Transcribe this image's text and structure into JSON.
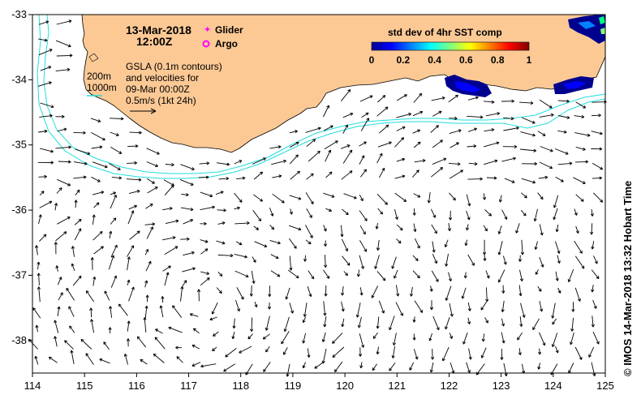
{
  "header": {
    "date": "13-Mar-2018",
    "time": "12:00Z"
  },
  "legend": {
    "glider_label": "Glider",
    "argo_label": "Argo",
    "glider_color": "#ff00ff",
    "argo_color": "#ff00ff"
  },
  "notes": {
    "depth_200": "200m",
    "depth_1000": "1000m",
    "gsla_line1": "GSLA (0.1m contours)",
    "gsla_line2": "and velocities for",
    "gsla_line3": "09-Mar 00:00Z",
    "gsla_line4": "0.5m/s (1kt 24h)"
  },
  "colorbar": {
    "title": "std dev of 4hr SST comp",
    "tick_labels": [
      "0",
      "0.2",
      "0.4",
      "0.6",
      "0.8",
      "1"
    ],
    "colormap": [
      "#00008f",
      "#0000ff",
      "#0080ff",
      "#00ffff",
      "#80ff80",
      "#ffff00",
      "#ff8000",
      "#ff0000",
      "#800000"
    ]
  },
  "credit": "© IMOS 14-Mar-2018 13:32 Hobart Time",
  "axes": {
    "x_ticks": [
      "114",
      "115",
      "116",
      "117",
      "118",
      "119",
      "120",
      "121",
      "122",
      "123",
      "124",
      "125"
    ],
    "y_ticks": [
      "-33",
      "-34",
      "-35",
      "-36",
      "-37",
      "-38"
    ],
    "lon_range": [
      114,
      125
    ],
    "lat_range": [
      -38.5,
      -33
    ]
  },
  "colors": {
    "land": "#fcc995",
    "contour": "#22dddd",
    "arrow": "#000000"
  }
}
